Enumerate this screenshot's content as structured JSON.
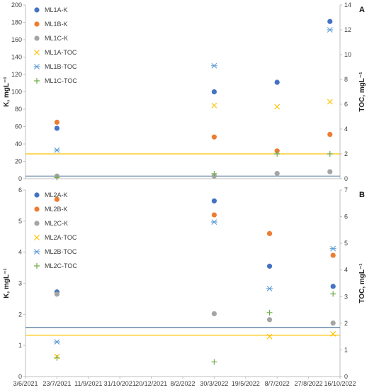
{
  "chart_data": [
    {
      "type": "scatter",
      "panel_label": "A",
      "ylabel": "K, mgL⁻¹",
      "y2label": "TOC, mgL⁻¹",
      "ylim": [
        0,
        200
      ],
      "yticks": [
        0,
        20,
        40,
        60,
        80,
        100,
        120,
        140,
        160,
        180,
        200
      ],
      "y2lim": [
        0,
        14
      ],
      "y2ticks": [
        0,
        2,
        4,
        6,
        8,
        10,
        12,
        14
      ],
      "legend_position": "top-left",
      "grid": false,
      "hlines": [
        {
          "axis": "right",
          "value": 2.0,
          "color": "#FFC000"
        },
        {
          "axis": "left",
          "value": 3,
          "color": "#5B7FA6"
        }
      ],
      "series": [
        {
          "name": "ML1A-K",
          "axis": "left",
          "marker": "circle",
          "color": "#4472C4",
          "points": [
            [
              "2021-07-23",
              58
            ],
            [
              "2022-03-30",
              100
            ],
            [
              "2022-07-08",
              111
            ],
            [
              "2022-09-30",
              181
            ]
          ]
        },
        {
          "name": "ML1B-K",
          "axis": "left",
          "marker": "circle",
          "color": "#ED7D31",
          "points": [
            [
              "2021-07-23",
              65
            ],
            [
              "2022-03-30",
              48
            ],
            [
              "2022-07-08",
              32
            ],
            [
              "2022-09-30",
              51
            ]
          ]
        },
        {
          "name": "ML1C-K",
          "axis": "left",
          "marker": "circle",
          "color": "#A5A5A5",
          "points": [
            [
              "2021-07-23",
              3
            ],
            [
              "2022-03-30",
              3
            ],
            [
              "2022-07-08",
              6
            ],
            [
              "2022-09-30",
              8
            ]
          ]
        },
        {
          "name": "ML1A-TOC",
          "axis": "right",
          "marker": "x",
          "color": "#FFC000",
          "points": [
            [
              "2022-03-30",
              5.9
            ],
            [
              "2022-07-08",
              5.8
            ],
            [
              "2022-09-30",
              6.2
            ]
          ]
        },
        {
          "name": "ML1B-TOC",
          "axis": "right",
          "marker": "star",
          "color": "#5B9BD5",
          "points": [
            [
              "2021-07-23",
              2.3
            ],
            [
              "2022-03-30",
              9.1
            ],
            [
              "2022-09-30",
              12.0
            ]
          ]
        },
        {
          "name": "ML1C-TOC",
          "axis": "right",
          "marker": "plus",
          "color": "#70AD47",
          "points": [
            [
              "2021-07-23",
              0.1
            ],
            [
              "2022-03-30",
              0.4
            ],
            [
              "2022-07-08",
              2.0
            ],
            [
              "2022-09-30",
              2.0
            ]
          ]
        }
      ]
    },
    {
      "type": "scatter",
      "panel_label": "B",
      "ylabel": "K, mgL⁻¹",
      "y2label": "TOC, mgL⁻¹",
      "ylim": [
        0,
        6
      ],
      "yticks": [
        0,
        1,
        2,
        3,
        4,
        5,
        6
      ],
      "y2lim": [
        0,
        7
      ],
      "y2ticks": [
        0,
        1,
        2,
        3,
        4,
        5,
        6,
        7
      ],
      "legend_position": "top-left",
      "grid": false,
      "x_tick_labels": [
        "3/6/2021",
        "23/7/2021",
        "11/9/2021",
        "31/10/2021",
        "20/12/2021",
        "8/2/2022",
        "30/3/2022",
        "19/5/2022",
        "8/7/2022",
        "27/8/2022",
        "16/10/2022"
      ],
      "xlim": [
        "2021-06-03",
        "2022-10-16"
      ],
      "hlines": [
        {
          "axis": "left",
          "value": 1.58,
          "color": "#5B7FA6"
        },
        {
          "axis": "right",
          "value": 1.55,
          "color": "#FFC000"
        }
      ],
      "series": [
        {
          "name": "ML2A-K",
          "axis": "left",
          "marker": "circle",
          "color": "#4472C4",
          "points": [
            [
              "2021-07-23",
              2.72
            ],
            [
              "2022-03-30",
              5.65
            ],
            [
              "2022-06-26",
              3.55
            ],
            [
              "2022-10-05",
              2.9
            ]
          ]
        },
        {
          "name": "ML2B-K",
          "axis": "left",
          "marker": "circle",
          "color": "#ED7D31",
          "points": [
            [
              "2021-07-23",
              5.7
            ],
            [
              "2022-03-30",
              5.2
            ],
            [
              "2022-06-26",
              4.6
            ],
            [
              "2022-10-05",
              3.9
            ]
          ]
        },
        {
          "name": "ML2C-K",
          "axis": "left",
          "marker": "circle",
          "color": "#A5A5A5",
          "points": [
            [
              "2021-07-23",
              2.65
            ],
            [
              "2022-03-30",
              2.02
            ],
            [
              "2022-06-26",
              1.83
            ],
            [
              "2022-10-05",
              1.72
            ]
          ]
        },
        {
          "name": "ML2A-TOC",
          "axis": "right",
          "marker": "x",
          "color": "#FFC000",
          "points": [
            [
              "2021-07-23",
              0.75
            ],
            [
              "2022-06-26",
              1.5
            ],
            [
              "2022-10-05",
              1.6
            ]
          ]
        },
        {
          "name": "ML2B-TOC",
          "axis": "right",
          "marker": "star",
          "color": "#5B9BD5",
          "points": [
            [
              "2021-07-23",
              1.3
            ],
            [
              "2022-03-30",
              5.8
            ],
            [
              "2022-06-26",
              3.3
            ],
            [
              "2022-10-05",
              4.8
            ]
          ]
        },
        {
          "name": "ML2C-TOC",
          "axis": "right",
          "marker": "plus",
          "color": "#70AD47",
          "points": [
            [
              "2021-07-23",
              0.7
            ],
            [
              "2022-03-30",
              0.55
            ],
            [
              "2022-06-26",
              2.4
            ],
            [
              "2022-10-05",
              3.1
            ]
          ]
        }
      ]
    }
  ]
}
